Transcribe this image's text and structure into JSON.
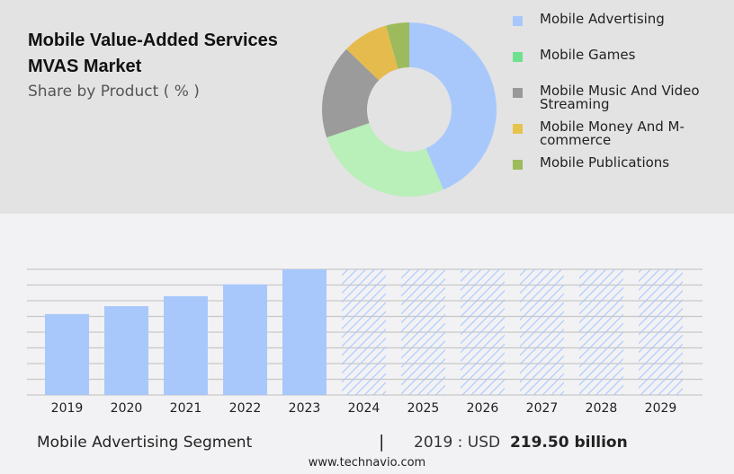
{
  "header": {
    "title": "Mobile Value-Added Services MVAS Market",
    "subtitle": "Share by Product ( % )"
  },
  "chart_data": [
    {
      "type": "pie",
      "donut": true,
      "categories": [
        "Mobile Advertising",
        "Mobile Games",
        "Mobile Music And Video Streaming",
        "Mobile Money And M-commerce",
        "Mobile Publications"
      ],
      "values": [
        43.6,
        26.2,
        17.4,
        8.5,
        4.3
      ],
      "slice_colors": [
        "#a8c8fc",
        "#b9efb9",
        "#9b9b9b",
        "#e6bb4e",
        "#9dbb5c"
      ],
      "legend_colors": [
        "#a8c8fc",
        "#6fe08f",
        "#999999",
        "#e6c44c",
        "#9dbb5c"
      ],
      "legend": "right"
    },
    {
      "type": "bar",
      "categories": [
        "2019",
        "2020",
        "2021",
        "2022",
        "2023",
        "2024",
        "2025",
        "2026",
        "2027",
        "2028",
        "2029"
      ],
      "values": [
        219.5,
        241,
        268,
        300,
        341,
        null,
        null,
        null,
        null,
        null,
        null
      ],
      "forecast": [
        "2024",
        "2025",
        "2026",
        "2027",
        "2028",
        "2029"
      ],
      "bar_color": "#a8c8fc",
      "ylim": [
        0,
        341
      ],
      "grid": true
    }
  ],
  "footer": {
    "segment": "Mobile Advertising Segment",
    "separator": "|",
    "year_label": "2019 : USD",
    "value": "219.50 billion",
    "site": "www.technavio.com"
  }
}
